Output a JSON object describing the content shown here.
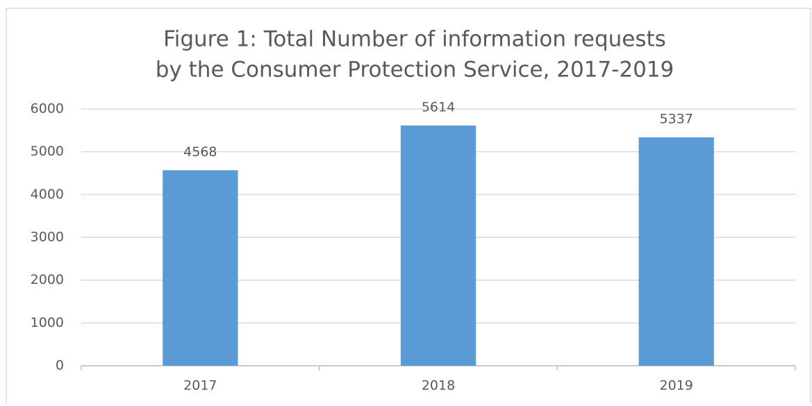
{
  "chart_data": {
    "type": "bar",
    "title": [
      "Figure 1: Total Number of information requests",
      "by the Consumer Protection Service, 2017-2019"
    ],
    "categories": [
      "2017",
      "2018",
      "2019"
    ],
    "values": [
      4568,
      5614,
      5337
    ],
    "color": "#5b9bd5",
    "ylim": [
      0,
      6000
    ],
    "yticks": [
      0,
      1000,
      2000,
      3000,
      4000,
      5000,
      6000
    ],
    "grid": true
  }
}
